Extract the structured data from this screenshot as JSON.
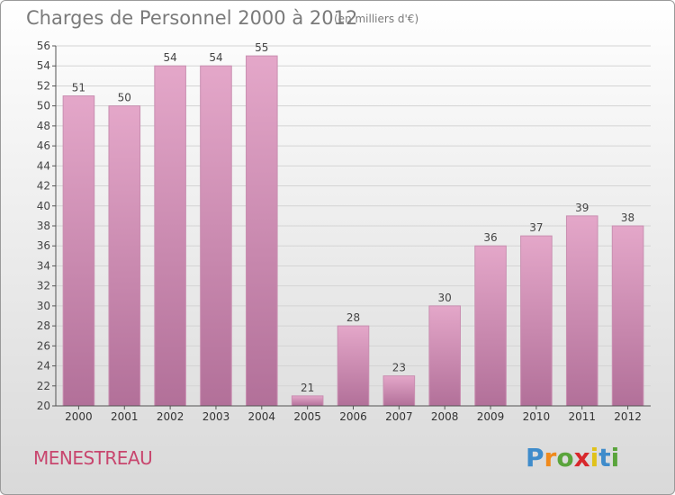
{
  "chart_data": {
    "type": "bar",
    "title": "Charges de Personnel 2000 à 2012",
    "subtitle": "(en milliers d'€)",
    "categories": [
      "2000",
      "2001",
      "2002",
      "2003",
      "2004",
      "2005",
      "2006",
      "2007",
      "2008",
      "2009",
      "2010",
      "2011",
      "2012"
    ],
    "values": [
      51,
      50,
      54,
      54,
      55,
      21,
      28,
      23,
      30,
      36,
      37,
      39,
      38
    ],
    "ylim": [
      20,
      56
    ],
    "yticks": [
      20,
      22,
      24,
      26,
      28,
      30,
      32,
      34,
      36,
      38,
      40,
      42,
      44,
      46,
      48,
      50,
      52,
      54,
      56
    ],
    "grid": true,
    "xlabel": "",
    "ylabel": "",
    "bar_color_top": "#e4a7c9",
    "bar_color_bottom": "#b27099"
  },
  "commune": "MENESTREAU",
  "logo": {
    "letters": [
      "P",
      "r",
      "o",
      "x",
      "i",
      "t",
      "i"
    ],
    "colors": [
      "#3f8ccb",
      "#f08a1c",
      "#5aa43c",
      "#d8282c",
      "#e0c21a",
      "#3f8ccb",
      "#5aa43c"
    ]
  }
}
